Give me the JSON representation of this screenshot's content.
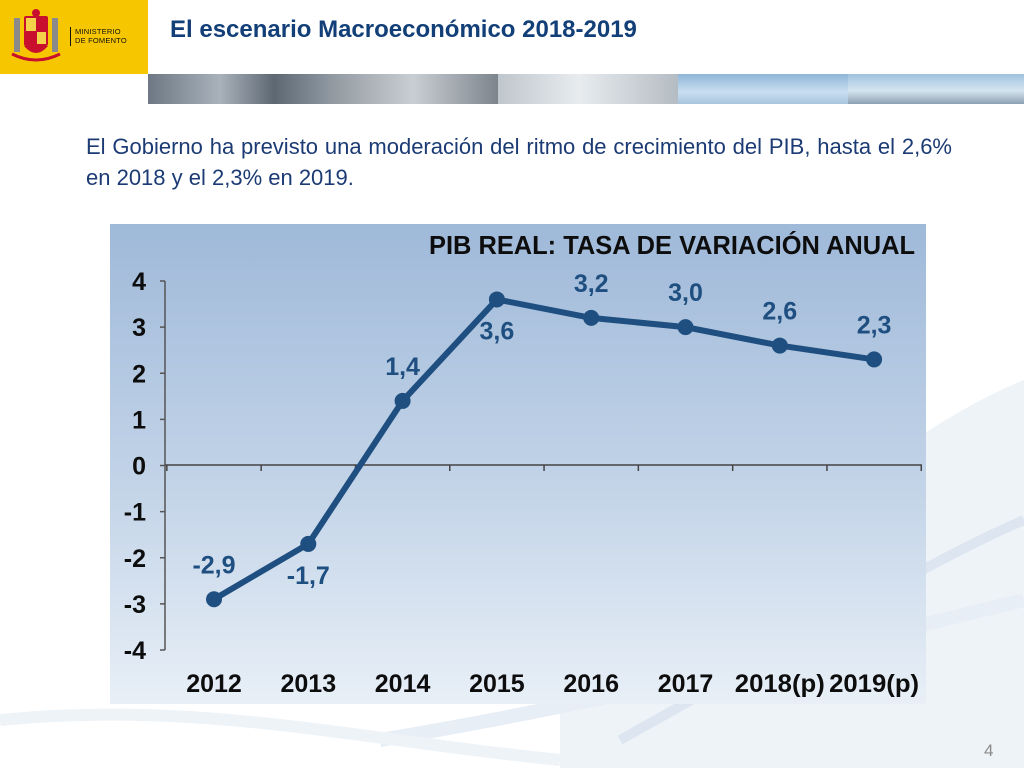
{
  "header": {
    "ministry_line1": "MINISTERIO",
    "ministry_line2": "DE FOMENTO",
    "title": "El escenario Macroeconómico 2018-2019"
  },
  "intro": {
    "text": "El Gobierno ha previsto una moderación del ritmo de crecimiento del PIB, hasta el 2,6% en 2018 y el 2,3% en 2019."
  },
  "colors": {
    "brand_yellow": "#f6c700",
    "title_blue": "#123f78",
    "series_blue": "#1f4f80"
  },
  "chart_data": {
    "type": "line",
    "title": "PIB REAL: TASA DE VARIACIÓN ANUAL",
    "categories": [
      "2012",
      "2013",
      "2014",
      "2015",
      "2016",
      "2017",
      "2018(p)",
      "2019(p)"
    ],
    "values": [
      -2.9,
      -1.7,
      1.4,
      3.6,
      3.2,
      3.0,
      2.6,
      2.3
    ],
    "data_labels": [
      "-2,9",
      "-1,7",
      "1,4",
      "3,6",
      "3,2",
      "3,0",
      "2,6",
      "2,3"
    ],
    "y_ticks": [
      "4",
      "3",
      "2",
      "1",
      "0",
      "-1",
      "-2",
      "-3",
      "-4"
    ],
    "ylim": [
      -4,
      4
    ],
    "xlabel": "",
    "ylabel": "",
    "grid": false,
    "legend": "none"
  },
  "footer": {
    "page_number": "4"
  }
}
